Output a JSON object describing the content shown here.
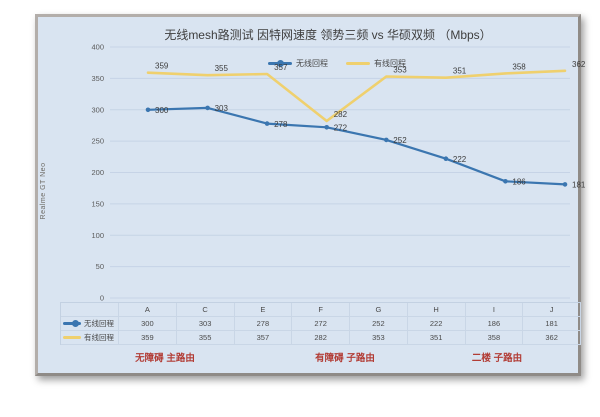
{
  "chart_data": {
    "type": "line",
    "title": "无线mesh路测试 因特网速度 领势三频 vs 华硕双频 （Mbps）",
    "categories": [
      "A",
      "C",
      "E",
      "F",
      "G",
      "H",
      "I",
      "J"
    ],
    "series": [
      {
        "name": "无线回程",
        "color": "#3b76b0",
        "marker": true,
        "values": [
          300,
          303,
          278,
          272,
          252,
          222,
          186,
          181
        ]
      },
      {
        "name": "有线回程",
        "color": "#efd06e",
        "marker": false,
        "values": [
          359,
          355,
          357,
          282,
          353,
          351,
          358,
          362
        ]
      }
    ],
    "ylim": [
      0,
      400
    ],
    "ytick_step": 50,
    "grid": "horizontal-only",
    "legend_position": "top-center",
    "data_labels": true,
    "y_axis_outer_label": "Realme GT Neo",
    "annotations": [
      "无障碍 主路由",
      "有障碍 子路由",
      "二楼 子路由"
    ]
  },
  "colors": {
    "chart_background": "#d9e4f1",
    "frame_border": "#a8a4a0",
    "gridline": "#c6d3e6",
    "wireless_blue": "#3b76b0",
    "wired_yellow": "#efd06e",
    "annotation_red": "#b23c35"
  }
}
